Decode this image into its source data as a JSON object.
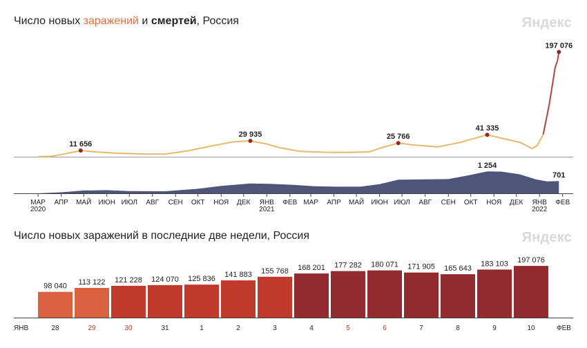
{
  "header1": {
    "part1": "Число новых ",
    "infected_word": "заражений",
    "part2": " и ",
    "deaths_word": "смертей",
    "part3": ", Россия",
    "brand": "Яндекс"
  },
  "header2": {
    "title": "Число новых заражений в последние две недели, Россия",
    "brand": "Яндекс"
  },
  "colors": {
    "infections_line": "#e5b96a",
    "infections_recent": "#b8423a",
    "deaths_area": "#4d5578",
    "marker": "#8e2a23",
    "bar_light": "#d9613f",
    "bar_mid": "#c0392b",
    "bar_dark": "#922b30"
  },
  "chart_data": [
    {
      "type": "line",
      "series": [
        {
          "name": "заражений",
          "x": [
            "2020-03-15",
            "2020-04-01",
            "2020-04-20",
            "2020-05-11",
            "2020-06-01",
            "2020-07-01",
            "2020-08-01",
            "2020-09-01",
            "2020-10-01",
            "2020-11-01",
            "2020-12-01",
            "2020-12-24",
            "2021-01-15",
            "2021-02-01",
            "2021-03-01",
            "2021-04-01",
            "2021-05-01",
            "2021-06-01",
            "2021-06-20",
            "2021-07-10",
            "2021-08-01",
            "2021-09-01",
            "2021-10-01",
            "2021-11-06",
            "2021-12-01",
            "2021-12-20",
            "2022-01-05",
            "2022-01-12",
            "2022-01-20",
            "2022-01-28",
            "2022-02-02",
            "2022-02-05",
            "2022-02-08",
            "2022-02-10"
          ],
          "values": [
            100,
            700,
            5500,
            11656,
            9000,
            6500,
            5200,
            5000,
            11000,
            20000,
            28000,
            29935,
            24000,
            17000,
            10000,
            8500,
            8000,
            9200,
            18000,
            25766,
            22000,
            18500,
            27000,
            41335,
            33000,
            27000,
            15500,
            21000,
            42000,
            98040,
            141883,
            168201,
            180071,
            197076
          ]
        },
        {
          "name": "смертей",
          "x": [
            "2020-03-15",
            "2020-04-15",
            "2020-05-15",
            "2020-06-15",
            "2020-07-15",
            "2020-09-01",
            "2020-10-15",
            "2020-11-15",
            "2020-12-24",
            "2021-01-20",
            "2021-02-20",
            "2021-03-20",
            "2021-04-20",
            "2021-05-20",
            "2021-06-15",
            "2021-07-10",
            "2021-08-15",
            "2021-09-15",
            "2021-10-15",
            "2021-11-06",
            "2021-11-25",
            "2021-12-20",
            "2022-01-10",
            "2022-01-25",
            "2022-02-10"
          ],
          "values": [
            0,
            60,
            160,
            180,
            130,
            120,
            260,
            420,
            560,
            540,
            480,
            400,
            380,
            380,
            520,
            780,
            800,
            810,
            1050,
            1254,
            1240,
            1080,
            800,
            680,
            701
          ]
        }
      ],
      "annotations": [
        {
          "label": "11 656",
          "x": "2020-05-11",
          "value": 11656,
          "series": "заражений"
        },
        {
          "label": "29 935",
          "x": "2020-12-24",
          "value": 29935,
          "series": "заражений"
        },
        {
          "label": "25 766",
          "x": "2021-07-10",
          "value": 25766,
          "series": "заражений"
        },
        {
          "label": "41 335",
          "x": "2021-11-06",
          "value": 41335,
          "series": "заражений"
        },
        {
          "label": "197 076",
          "x": "2022-02-10",
          "value": 197076,
          "series": "заражений"
        },
        {
          "label": "1 254",
          "x": "2021-11-06",
          "value": 1254,
          "series": "смертей"
        },
        {
          "label": "701",
          "x": "2022-02-10",
          "value": 701,
          "series": "смертей"
        }
      ],
      "x_ticks": [
        {
          "label": "МАР",
          "year": "2020",
          "x": "2020-03-15"
        },
        {
          "label": "АПР",
          "x": "2020-04-15"
        },
        {
          "label": "МАЙ",
          "x": "2020-05-15"
        },
        {
          "label": "ИЮН",
          "x": "2020-06-15"
        },
        {
          "label": "ИЮЛ",
          "x": "2020-07-15"
        },
        {
          "label": "АВГ",
          "x": "2020-08-15"
        },
        {
          "label": "СЕН",
          "x": "2020-09-15"
        },
        {
          "label": "ОКТ",
          "x": "2020-10-15"
        },
        {
          "label": "НОЯ",
          "x": "2020-11-15"
        },
        {
          "label": "ДЕК",
          "x": "2020-12-15"
        },
        {
          "label": "ЯНВ",
          "year": "2021",
          "x": "2021-01-15"
        },
        {
          "label": "ФЕВ",
          "x": "2021-02-15"
        },
        {
          "label": "МАР",
          "x": "2021-03-15"
        },
        {
          "label": "АПР",
          "x": "2021-04-15"
        },
        {
          "label": "МАЙ",
          "x": "2021-05-15"
        },
        {
          "label": "ИЮН",
          "x": "2021-06-15"
        },
        {
          "label": "ИЮЛ",
          "x": "2021-07-15"
        },
        {
          "label": "АВГ",
          "x": "2021-08-15"
        },
        {
          "label": "СЕН",
          "x": "2021-09-15"
        },
        {
          "label": "ОКТ",
          "x": "2021-10-15"
        },
        {
          "label": "НОЯ",
          "x": "2021-11-15"
        },
        {
          "label": "ДЕК",
          "x": "2021-12-15"
        },
        {
          "label": "ЯНВ",
          "year": "2022",
          "x": "2022-01-15"
        },
        {
          "label": "ФЕВ",
          "x": "2022-02-15"
        }
      ],
      "x_range": [
        "2020-03-01",
        "2022-02-18"
      ],
      "ylim_infections": [
        0,
        200000
      ],
      "ylim_deaths": [
        0,
        1300
      ],
      "grid": false
    },
    {
      "type": "bar",
      "categories": [
        "28",
        "29",
        "30",
        "31",
        "1",
        "2",
        "3",
        "4",
        "5",
        "6",
        "7",
        "8",
        "9",
        "10"
      ],
      "values": [
        98040,
        113122,
        121228,
        124070,
        125836,
        141883,
        155768,
        168201,
        177282,
        180071,
        171905,
        165643,
        183103,
        197076
      ],
      "value_labels": [
        "98 040",
        "113 122",
        "121 228",
        "124 070",
        "125 836",
        "141 883",
        "155 768",
        "168 201",
        "177 282",
        "180 071",
        "171 905",
        "165 643",
        "183 103",
        "197 076"
      ],
      "weekend": [
        false,
        true,
        true,
        false,
        false,
        false,
        false,
        false,
        true,
        true,
        false,
        false,
        false,
        false
      ],
      "shade": [
        "light",
        "light",
        "mid",
        "mid",
        "mid",
        "mid",
        "mid",
        "dark",
        "dark",
        "dark",
        "dark",
        "dark",
        "dark",
        "dark"
      ],
      "month_start": "ЯНВ",
      "month_end": "ФЕВ",
      "ylim": [
        0,
        200000
      ]
    }
  ]
}
